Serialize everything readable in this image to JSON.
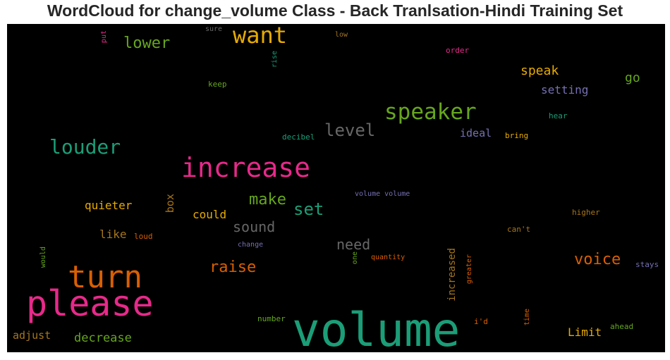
{
  "title": "WordCloud for change_volume Class - Back Tranlsation-Hindi Training Set",
  "colors": {
    "background": "#000000",
    "title": "#262626"
  },
  "words": [
    {
      "text": "volume",
      "color": "#1b9e77"
    },
    {
      "text": "please",
      "color": "#e7298a"
    },
    {
      "text": "turn",
      "color": "#d95f02"
    },
    {
      "text": "increase",
      "color": "#e7298a"
    },
    {
      "text": "speaker",
      "color": "#66a61e"
    },
    {
      "text": "want",
      "color": "#e6ab02"
    },
    {
      "text": "louder",
      "color": "#1b9e77"
    },
    {
      "text": "lower",
      "color": "#66a61e"
    },
    {
      "text": "level",
      "color": "#666666"
    },
    {
      "text": "set",
      "color": "#1b9e77"
    },
    {
      "text": "make",
      "color": "#66a61e"
    },
    {
      "text": "raise",
      "color": "#d95f02"
    },
    {
      "text": "voice",
      "color": "#d95f02"
    },
    {
      "text": "sound",
      "color": "#666666"
    },
    {
      "text": "need",
      "color": "#666666"
    },
    {
      "text": "speak",
      "color": "#e6ab02"
    },
    {
      "text": "setting",
      "color": "#7570b3"
    },
    {
      "text": "go",
      "color": "#66a61e"
    },
    {
      "text": "quieter",
      "color": "#e6ab02"
    },
    {
      "text": "could",
      "color": "#e6ab02"
    },
    {
      "text": "like",
      "color": "#a6761d"
    },
    {
      "text": "decrease",
      "color": "#66a61e"
    },
    {
      "text": "adjust",
      "color": "#a6761d"
    },
    {
      "text": "Limit",
      "color": "#e6ab02"
    },
    {
      "text": "ideal",
      "color": "#7570b3"
    },
    {
      "text": "box",
      "color": "#a6761d"
    },
    {
      "text": "increased",
      "color": "#a6761d"
    },
    {
      "text": "keep",
      "color": "#66a61e"
    },
    {
      "text": "sure",
      "color": "#666666"
    },
    {
      "text": "low",
      "color": "#a6761d"
    },
    {
      "text": "order",
      "color": "#e7298a"
    },
    {
      "text": "hear",
      "color": "#1b9e77"
    },
    {
      "text": "bring",
      "color": "#e6ab02"
    },
    {
      "text": "decibel",
      "color": "#1b9e77"
    },
    {
      "text": "volume volume",
      "color": "#7570b3"
    },
    {
      "text": "higher",
      "color": "#a6761d"
    },
    {
      "text": "can't",
      "color": "#a6761d"
    },
    {
      "text": "loud",
      "color": "#d95f02"
    },
    {
      "text": "change",
      "color": "#7570b3"
    },
    {
      "text": "quantity",
      "color": "#d95f02"
    },
    {
      "text": "stays",
      "color": "#7570b3"
    },
    {
      "text": "number",
      "color": "#66a61e"
    },
    {
      "text": "i'd",
      "color": "#d95f02"
    },
    {
      "text": "ahead",
      "color": "#66a61e"
    },
    {
      "text": "put",
      "color": "#e7298a"
    },
    {
      "text": "rise",
      "color": "#1b9e77"
    },
    {
      "text": "would",
      "color": "#66a61e"
    },
    {
      "text": "one",
      "color": "#66a61e"
    },
    {
      "text": "greater",
      "color": "#d95f02"
    },
    {
      "text": "time",
      "color": "#d95f02"
    }
  ]
}
